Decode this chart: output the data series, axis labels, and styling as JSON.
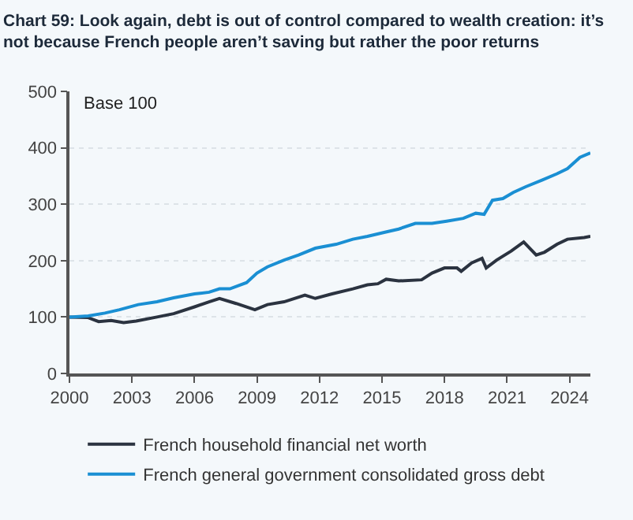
{
  "chart_data": {
    "type": "line",
    "title": "Chart 59: Look again, debt is out of control compared to wealth creation: it’s not because French people aren’t saving but rather the poor returns",
    "annotations": [
      "Base 100"
    ],
    "xlim": [
      2000,
      2025
    ],
    "xticks": [
      2000,
      2003,
      2006,
      2009,
      2012,
      2015,
      2018,
      2021,
      2024
    ],
    "ylim": [
      0,
      500
    ],
    "yticks": [
      0,
      100,
      200,
      300,
      400,
      500
    ],
    "grid": "y",
    "legend": "bottom",
    "series": [
      {
        "name": "French household financial net worth",
        "color": "#2b3340",
        "x": [
          2000,
          2000.9,
          2001.4,
          2002,
          2002.6,
          2003.2,
          2004.2,
          2005,
          2006,
          2006.7,
          2007.2,
          2008,
          2008.9,
          2009.5,
          2010.3,
          2011.3,
          2011.8,
          2012.6,
          2013.6,
          2014.3,
          2014.8,
          2015.2,
          2015.8,
          2016.9,
          2017.4,
          2018,
          2018.6,
          2018.8,
          2019.3,
          2019.8,
          2020,
          2020.5,
          2021.2,
          2021.8,
          2022.4,
          2022.8,
          2023.4,
          2023.9,
          2024.7,
          2025
        ],
        "values": [
          100,
          99,
          92,
          94,
          90,
          93,
          100,
          106,
          118,
          127,
          133,
          124,
          113,
          122,
          127,
          139,
          133,
          141,
          150,
          157,
          159,
          167,
          164,
          166,
          178,
          187,
          187,
          181,
          196,
          204,
          187,
          201,
          217,
          233,
          210,
          215,
          229,
          238,
          241,
          243
        ]
      },
      {
        "name": "French general government consolidated gross debt",
        "color": "#1a8fd3",
        "x": [
          2000,
          2000.9,
          2001.7,
          2002.4,
          2003.3,
          2004.2,
          2005,
          2006,
          2006.7,
          2007.2,
          2007.7,
          2008.5,
          2009,
          2009.5,
          2010.3,
          2011,
          2011.8,
          2012.8,
          2013.6,
          2014.3,
          2015.1,
          2015.8,
          2016.6,
          2017.4,
          2018.1,
          2018.9,
          2019.5,
          2019.9,
          2020.3,
          2020.8,
          2021.3,
          2021.9,
          2022.7,
          2023.4,
          2023.9,
          2024.5,
          2025
        ],
        "values": [
          100,
          102,
          107,
          113,
          122,
          127,
          134,
          141,
          144,
          150,
          150,
          161,
          178,
          189,
          201,
          210,
          222,
          229,
          238,
          243,
          250,
          256,
          266,
          266,
          270,
          275,
          284,
          282,
          307,
          310,
          321,
          331,
          343,
          354,
          363,
          383,
          391
        ]
      }
    ]
  }
}
